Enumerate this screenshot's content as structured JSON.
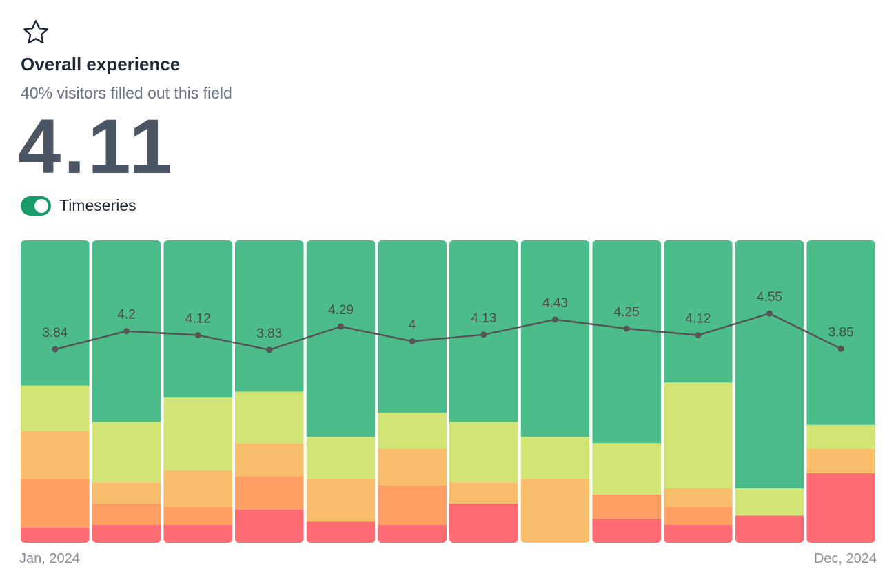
{
  "header": {
    "title": "Overall experience",
    "subtitle": "40% visitors filled out this field",
    "score": "4.11",
    "toggle_label": "Timeseries"
  },
  "chart_data": {
    "type": "bar",
    "stacked": true,
    "categories": [
      "Jan, 2024",
      null,
      null,
      null,
      null,
      null,
      null,
      null,
      null,
      null,
      null,
      "Dec, 2024"
    ],
    "ylim": [
      0,
      100
    ],
    "y2lim": [
      0,
      6
    ],
    "series": [
      {
        "color": "#ff6b72",
        "values": [
          5,
          6,
          6,
          11,
          7,
          6,
          13,
          0,
          8,
          6,
          9,
          23
        ]
      },
      {
        "color": "#ff9f63",
        "values": [
          16,
          7,
          6,
          11,
          0,
          13,
          0,
          0,
          8,
          6,
          0,
          0
        ]
      },
      {
        "color": "#f8bd6a",
        "values": [
          16,
          7,
          12,
          11,
          14,
          12,
          7,
          21,
          0,
          6,
          0,
          8
        ]
      },
      {
        "color": "#d2e574",
        "values": [
          15,
          20,
          24,
          17,
          14,
          12,
          20,
          14,
          17,
          35,
          9,
          8
        ]
      },
      {
        "color": "#4cbd8a",
        "values": [
          48,
          60,
          52,
          50,
          65,
          57,
          60,
          65,
          67,
          47,
          82,
          61
        ]
      },
      {
        "color": "#555555",
        "axis": "y2",
        "type": "line",
        "values": [
          3.84,
          4.2,
          4.12,
          3.83,
          4.29,
          4,
          4.13,
          4.43,
          4.25,
          4.12,
          4.55,
          3.85
        ]
      }
    ]
  }
}
